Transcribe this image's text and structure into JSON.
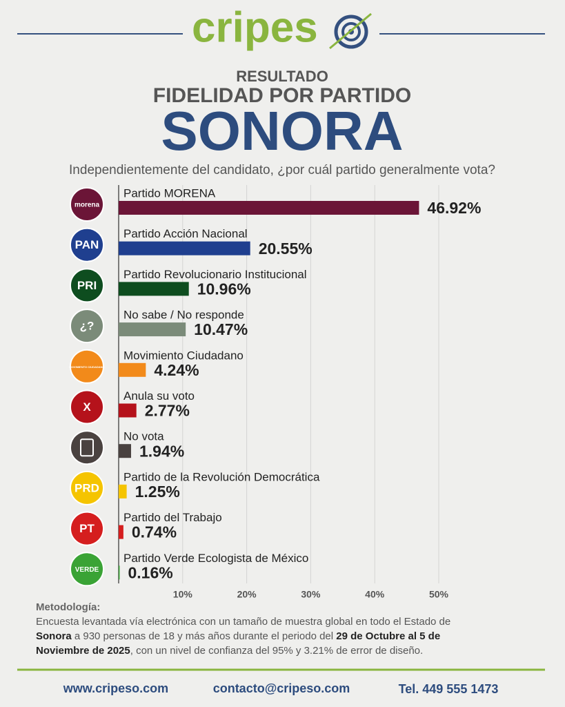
{
  "header": {
    "brand": "cripes"
  },
  "chart_data": {
    "type": "bar",
    "orientation": "horizontal",
    "kicker": "RESULTADO",
    "title": "FIDELIDAD POR PARTIDO",
    "subtitle": "SONORA",
    "question": "Independientemente del candidato, ¿por cuál partido generalmente vota?",
    "categories": [
      "Partido MORENA",
      "Partido Acción Nacional",
      "Partido Revolucionario Institucional",
      "No sabe / No responde",
      "Movimiento Ciudadano",
      "Anula su voto",
      "No vota",
      "Partido de la Revolución Democrática",
      "Partido del Trabajo",
      "Partido Verde Ecologista de México"
    ],
    "icons": [
      "morena",
      "PAN",
      "PRI",
      "¿?",
      "MOVIMIENTO CIUDADANO",
      "X",
      null,
      "PRD",
      "PT",
      "VERDE"
    ],
    "values": [
      46.92,
      20.55,
      10.96,
      10.47,
      4.24,
      2.77,
      1.94,
      1.25,
      0.74,
      0.16
    ],
    "value_labels": [
      "46.92%",
      "20.55%",
      "10.96%",
      "10.47%",
      "4.24%",
      "2.77%",
      "1.94%",
      "1.25%",
      "0.74%",
      "0.16%"
    ],
    "colors": [
      "#6b1537",
      "#1f3f8f",
      "#0e4d1f",
      "#7b8b79",
      "#f28a1a",
      "#b5121b",
      "#4a4240",
      "#f5c400",
      "#d51e1e",
      "#3aa335"
    ],
    "xlim": [
      0,
      50
    ],
    "xticks": [
      {
        "value": 10,
        "label": "10%"
      },
      {
        "value": 20,
        "label": "20%"
      },
      {
        "value": 30,
        "label": "30%"
      },
      {
        "value": 40,
        "label": "40%"
      },
      {
        "value": 50,
        "label": "50%"
      }
    ],
    "grid": true
  },
  "methodology": {
    "title": "Metodología:",
    "lines": [
      [
        {
          "text": "Encuesta levantada vía electrónica con un tamaño de muestra global en todo el Estado de",
          "bold": false
        }
      ],
      [
        {
          "text": "Sonora",
          "bold": true
        },
        {
          "text": " a 930 personas de 18 y más años durante el periodo del ",
          "bold": false
        },
        {
          "text": "29 de Octubre al 5 de",
          "bold": true
        }
      ],
      [
        {
          "text": "Noviembre de 2025",
          "bold": true
        },
        {
          "text": ", con un nivel de confianza del 95% y 3.21% de error de diseño.",
          "bold": false
        }
      ]
    ]
  },
  "footer": {
    "web": "www.cripeso.com",
    "email": "contacto@cripeso.com",
    "phone": "Tel. 449 555 1473"
  }
}
